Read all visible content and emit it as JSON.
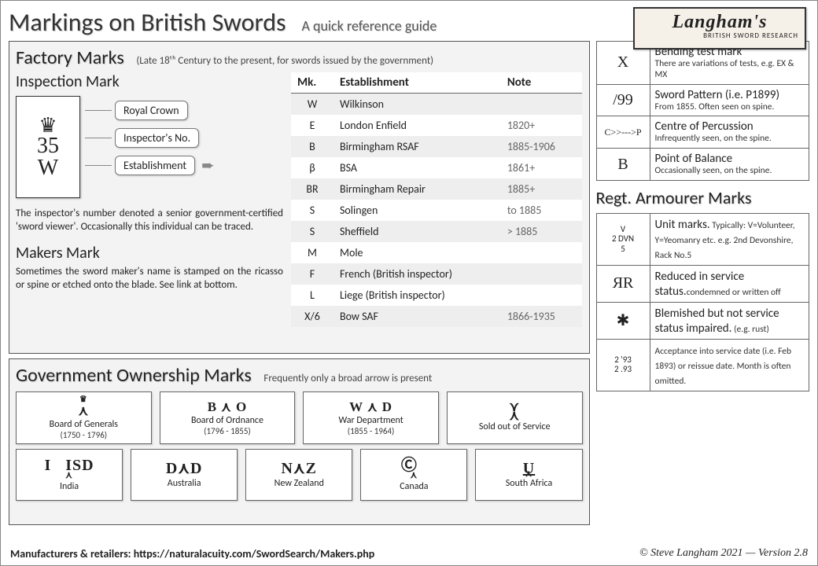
{
  "title": "Markings on British Swords",
  "subtitle": "A quick reference guide",
  "logo": {
    "brand": "Langham's",
    "tag": "BRITISH SWORD RESEARCH"
  },
  "factory": {
    "title": "Factory Marks",
    "note": "(Late 18ᵗʰ Century to the present, for swords issued by the government)",
    "inspection": {
      "title": "Inspection Mark",
      "stamp_no": "35",
      "stamp_est": "W",
      "callout1": "Royal Crown",
      "callout2": "Inspector's No.",
      "callout3": "Establishment",
      "text": "The inspector's number denoted a senior government-certified 'sword viewer'. Occasionally this individual can be traced."
    },
    "makers": {
      "title": "Makers Mark",
      "text": "Sometimes the sword maker's name is stamped on the ricasso or spine or etched onto the blade. See link at bottom."
    },
    "table_head": {
      "mk": "Mk.",
      "est": "Establishment",
      "note": "Note"
    },
    "rows": [
      {
        "mk": "W",
        "est": "Wilkinson",
        "note": ""
      },
      {
        "mk": "E",
        "est": "London Enfield",
        "note": "1820+"
      },
      {
        "mk": "B",
        "est": "Birmingham RSAF",
        "note": "1885-1906"
      },
      {
        "mk": "β",
        "est": "BSA",
        "note": "1861+"
      },
      {
        "mk": "BR",
        "est": "Birmingham Repair",
        "note": "1885+"
      },
      {
        "mk": "S",
        "est": "Solingen",
        "note": "to 1885"
      },
      {
        "mk": "S",
        "est": "Sheffield",
        "note": "> 1885"
      },
      {
        "mk": "M",
        "est": "Mole",
        "note": ""
      },
      {
        "mk": "F",
        "est": "French (British inspector)",
        "note": ""
      },
      {
        "mk": "L",
        "est": "Liege (British inspector)",
        "note": ""
      },
      {
        "mk": "X/6",
        "est": "Bow SAF",
        "note": "1866-1935"
      }
    ]
  },
  "info_marks": [
    {
      "sym": "X",
      "hd": "Bending test mark",
      "sub": "There are variations of tests, e.g. EX & MX"
    },
    {
      "sym": "/99",
      "hd": "Sword Pattern (i.e. P1899)",
      "sub": "From 1855. Often seen on spine."
    },
    {
      "sym": "C>>--->P",
      "hd": "Centre of Percussion",
      "sub": "Infrequently seen, on the spine."
    },
    {
      "sym": "B",
      "hd": "Point of Balance",
      "sub": "Occasionally seen, on the spine."
    }
  ],
  "regt": {
    "title": "Regt. Armourer Marks",
    "rows": [
      {
        "sym_lines": [
          "V",
          "2 DVN",
          "5"
        ],
        "hd": "Unit marks.",
        "sub": " Typically: V=Volunteer, Y=Yeomanry etc. e.g. 2nd Devonshire, Rack No.5"
      },
      {
        "sym": "ЯR",
        "hd": "Reduced in service status.",
        "sub": "condemned or written off"
      },
      {
        "sym": "✱",
        "hd": "Blemished but not service status impaired.",
        "sub": " (e.g. rust)"
      },
      {
        "sym_lines": [
          "2 '93",
          "2 .93"
        ],
        "hd": "",
        "sub": "Acceptance into service date (i.e. Feb 1893) or reissue date. Month is often omitted."
      }
    ]
  },
  "gov": {
    "title": "Government Ownership Marks",
    "note": "Frequently only a broad arrow is present",
    "row1": [
      {
        "sym_top": "♛",
        "sym": "⋏",
        "lbl": "Board of Generals",
        "yrs": "(1750 - 1796)"
      },
      {
        "sym": "B ⋏ O",
        "sym_below": "",
        "lbl": "Board of Ordnance",
        "yrs": "(1796 - 1855)"
      },
      {
        "sym": "W ⋏ D",
        "lbl": "War Department",
        "yrs": "(1855 - 1964)"
      },
      {
        "sym": "⋎ ⋏",
        "stack": true,
        "lbl": "Sold out of Service",
        "yrs": ""
      }
    ],
    "row2": [
      {
        "sym": "I   ISD",
        "arr": "⋏",
        "lbl": "India"
      },
      {
        "sym": "D⋏D",
        "lbl": "Australia"
      },
      {
        "sym": "N⋏Z",
        "lbl": "New Zealand"
      },
      {
        "sym": "Ⓒ",
        "arr": "⋏",
        "lbl": "Canada"
      },
      {
        "sym": "U",
        "arr": "⋏",
        "under": true,
        "lbl": "South Africa"
      }
    ]
  },
  "footer": {
    "left_label": "Manufacturers & retailers:  ",
    "left_url": "https://naturalacuity.com/SwordSearch/Makers.php",
    "right": "© Steve Langham 2021 — Version 2.8"
  }
}
